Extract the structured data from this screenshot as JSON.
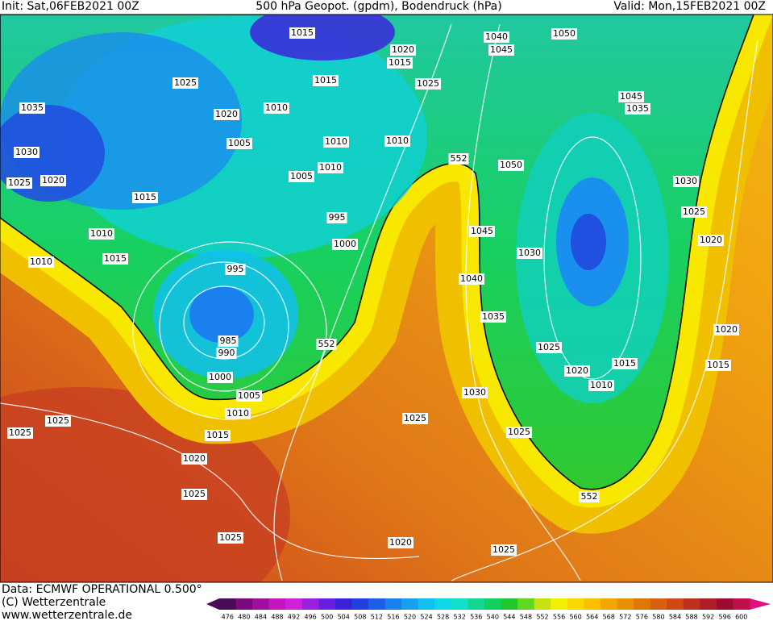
{
  "header": {
    "init": "Init: Sat,06FEB2021 00Z",
    "title": "500 hPa Geopot. (gpdm), Bodendruck (hPa)",
    "valid": "Valid: Mon,15FEB2021 00Z"
  },
  "map": {
    "isobar_labels": [
      1015,
      1020,
      1015,
      1040,
      1050,
      1045,
      1025,
      1015,
      1025,
      1035,
      1020,
      1010,
      1045,
      1035,
      1005,
      1010,
      1010,
      1030,
      552,
      1010,
      1050,
      1005,
      1025,
      1020,
      1030,
      1015,
      1025,
      995,
      1010,
      1045,
      1020,
      1000,
      1030,
      1010,
      1015,
      995,
      1040,
      1035,
      1020,
      985,
      552,
      1025,
      990,
      1015,
      1015,
      1020,
      1010,
      1000,
      1030,
      1005,
      1010,
      1025,
      1025,
      1025,
      1025,
      1015,
      1020,
      552,
      1025,
      1025,
      1020,
      1025
    ]
  },
  "footer": {
    "data": "Data: ECMWF OPERATIONAL 0.500°",
    "copyright": "(C) Wetterzentrale",
    "url": "www.wetterzentrale.de"
  },
  "colorbar": {
    "levels": [
      476,
      480,
      484,
      488,
      492,
      496,
      500,
      504,
      508,
      512,
      516,
      520,
      524,
      528,
      532,
      536,
      540,
      544,
      548,
      552,
      556,
      560,
      564,
      568,
      572,
      576,
      580,
      584,
      588,
      592,
      596,
      600
    ],
    "colors": [
      "#4b0c56",
      "#7a0a7e",
      "#a0109a",
      "#c614c0",
      "#d020d8",
      "#9a20e0",
      "#6a1ee0",
      "#3a22d8",
      "#2040e0",
      "#1c5ee8",
      "#1a80ee",
      "#18a0f0",
      "#10c0f0",
      "#10d8e8",
      "#10e0c8",
      "#10d890",
      "#10d060",
      "#20c830",
      "#60d820",
      "#c8e010",
      "#f0f000",
      "#f8d800",
      "#f8c000",
      "#f0a800",
      "#e89000",
      "#e07800",
      "#d86010",
      "#d04818",
      "#c03020",
      "#b01c28",
      "#9c0c30",
      "#c0104a"
    ]
  }
}
